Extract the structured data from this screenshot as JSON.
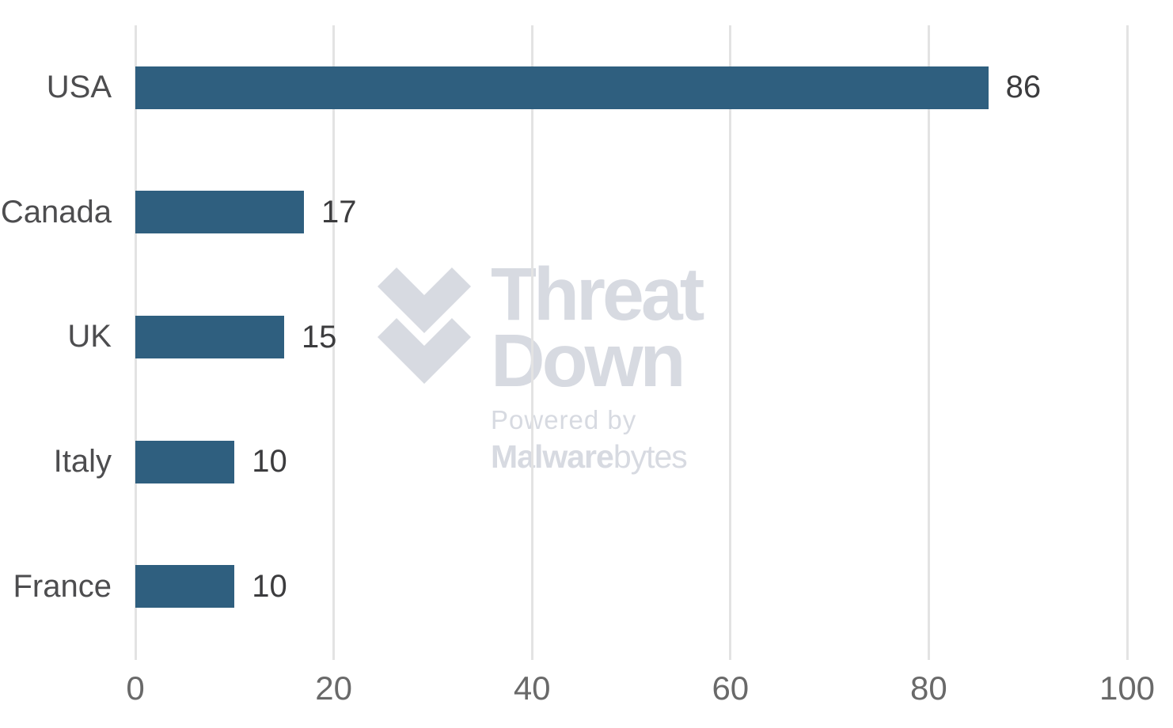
{
  "chart_data": {
    "type": "bar",
    "orientation": "horizontal",
    "title": "",
    "xlabel": "",
    "ylabel": "",
    "categories": [
      "USA",
      "Canada",
      "UK",
      "Italy",
      "France"
    ],
    "values": [
      86,
      17,
      15,
      10,
      10
    ],
    "data_labels": [
      "86",
      "17",
      "15",
      "10",
      "10"
    ],
    "xlim": [
      0,
      100
    ],
    "x_tick_values": [
      0,
      20,
      40,
      60,
      80,
      100
    ],
    "x_tick_labels": [
      "0",
      "20",
      "40",
      "60",
      "80",
      "100"
    ],
    "grid": "vertical-only",
    "legend": "none",
    "colors": {
      "bar": "#2f5f7f",
      "gridline": "#e3e3e3",
      "category_label": "#4d4d4f",
      "value_label": "#3c3c3e",
      "tick_label": "#696969",
      "background": "#ffffff",
      "watermark": "#d7dae1"
    }
  },
  "watermark": {
    "line1": "Threat",
    "line2": "Down",
    "powered_by": "Powered by",
    "brand_strong": "Malware",
    "brand_light": "bytes"
  }
}
